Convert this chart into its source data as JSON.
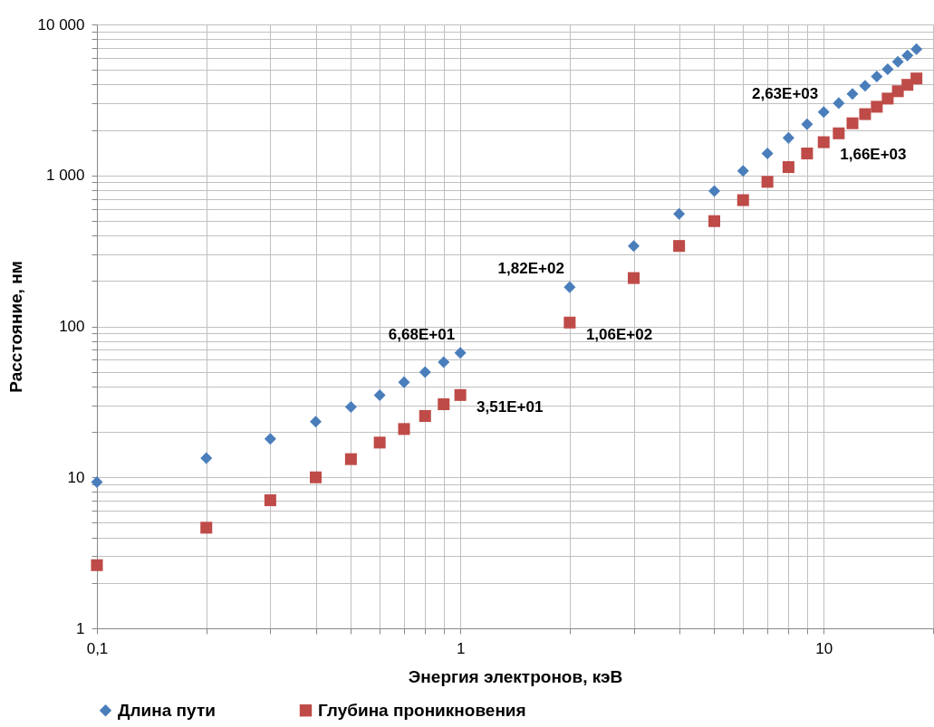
{
  "chart_data": {
    "type": "scatter",
    "xlabel": "Энергия электронов, кэВ",
    "ylabel": "Расстояние, нм",
    "log": "xy",
    "grid": true,
    "legend": "bottom",
    "xlim": [
      0.1,
      20
    ],
    "ylim": [
      1,
      10000
    ],
    "xticks": [
      {
        "value": 0.1,
        "label": "0,1"
      },
      {
        "value": 0.2,
        "label": null
      },
      {
        "value": 0.3,
        "label": null
      },
      {
        "value": 0.4,
        "label": null
      },
      {
        "value": 0.5,
        "label": null
      },
      {
        "value": 0.6,
        "label": null
      },
      {
        "value": 0.7,
        "label": null
      },
      {
        "value": 0.8,
        "label": null
      },
      {
        "value": 0.9,
        "label": null
      },
      1,
      {
        "value": 2,
        "label": null
      },
      {
        "value": 3,
        "label": null
      },
      {
        "value": 4,
        "label": null
      },
      {
        "value": 5,
        "label": null
      },
      {
        "value": 6,
        "label": null
      },
      {
        "value": 7,
        "label": null
      },
      {
        "value": 8,
        "label": null
      },
      {
        "value": 9,
        "label": null
      },
      10,
      {
        "value": 20,
        "label": null
      }
    ],
    "yticks": [
      1,
      {
        "value": 2,
        "label": null
      },
      {
        "value": 3,
        "label": null
      },
      {
        "value": 4,
        "label": null
      },
      {
        "value": 5,
        "label": null
      },
      {
        "value": 6,
        "label": null
      },
      {
        "value": 7,
        "label": null
      },
      {
        "value": 8,
        "label": null
      },
      {
        "value": 9,
        "label": null
      },
      10,
      {
        "value": 20,
        "label": null
      },
      {
        "value": 30,
        "label": null
      },
      {
        "value": 40,
        "label": null
      },
      {
        "value": 50,
        "label": null
      },
      {
        "value": 60,
        "label": null
      },
      {
        "value": 70,
        "label": null
      },
      {
        "value": 80,
        "label": null
      },
      {
        "value": 90,
        "label": null
      },
      100,
      {
        "value": 200,
        "label": null
      },
      {
        "value": 300,
        "label": null
      },
      {
        "value": 400,
        "label": null
      },
      {
        "value": 500,
        "label": null
      },
      {
        "value": 600,
        "label": null
      },
      {
        "value": 700,
        "label": null
      },
      {
        "value": 800,
        "label": null
      },
      {
        "value": 900,
        "label": null
      },
      {
        "value": 1000,
        "label": "1 000"
      },
      {
        "value": 2000,
        "label": null
      },
      {
        "value": 3000,
        "label": null
      },
      {
        "value": 4000,
        "label": null
      },
      {
        "value": 5000,
        "label": null
      },
      {
        "value": 6000,
        "label": null
      },
      {
        "value": 7000,
        "label": null
      },
      {
        "value": 8000,
        "label": null
      },
      {
        "value": 9000,
        "label": null
      },
      {
        "value": 10000,
        "label": "10 000"
      }
    ],
    "x": [
      0.1,
      0.2,
      0.3,
      0.4,
      0.5,
      0.6,
      0.7,
      0.8,
      0.9,
      1,
      2,
      3,
      4,
      5,
      6,
      7,
      8,
      9,
      10,
      11,
      12,
      13,
      14,
      15,
      16,
      17,
      18
    ],
    "series": [
      {
        "name": "Длина пути",
        "color": "#4a7ebb",
        "marker": "diamond",
        "values": [
          9.3,
          13.4,
          18,
          23.4,
          29.3,
          35,
          42.7,
          49.8,
          58,
          66.8,
          182,
          341,
          556,
          788,
          1072,
          1397,
          1771,
          2183,
          2630,
          3013,
          3461,
          3925,
          4518,
          5050,
          5650,
          6225,
          6860
        ],
        "value_labels": [
          null,
          null,
          null,
          null,
          null,
          null,
          null,
          null,
          null,
          "6,68E+01",
          "1,82E+02",
          null,
          null,
          null,
          null,
          null,
          null,
          null,
          "2,63E+03",
          null,
          null,
          null,
          null,
          null,
          null,
          null,
          null
        ]
      },
      {
        "name": "Глубина проникновения",
        "color": "#be4b48",
        "marker": "square",
        "values": [
          2.62,
          4.64,
          7.05,
          10,
          13.2,
          17,
          20.9,
          25.5,
          30.5,
          35.1,
          106,
          209,
          341,
          498,
          686,
          907,
          1135,
          1397,
          1660,
          1900,
          2215,
          2546,
          2849,
          3228,
          3611,
          3981,
          4387
        ],
        "value_labels": [
          null,
          null,
          null,
          null,
          null,
          null,
          null,
          null,
          null,
          "3,51E+01",
          "1,06E+02",
          null,
          null,
          null,
          null,
          null,
          null,
          null,
          "1,66E+03",
          null,
          null,
          null,
          null,
          null,
          null,
          null,
          null
        ]
      }
    ]
  }
}
